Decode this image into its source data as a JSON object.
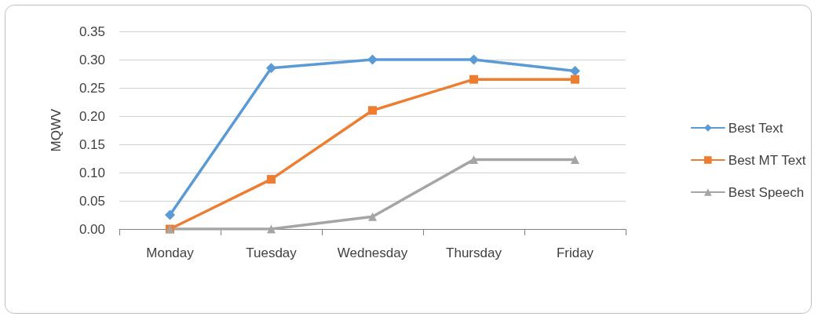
{
  "chart_data": {
    "type": "line",
    "ylabel": "MQWV",
    "categories": [
      "Monday",
      "Tuesday",
      "Wednesday",
      "Thursday",
      "Friday"
    ],
    "series": [
      {
        "name": "Best Text",
        "color": "#5b9bd5",
        "marker": "diamond",
        "values": [
          0.025,
          0.285,
          0.3,
          0.3,
          0.28
        ]
      },
      {
        "name": "Best MT Text",
        "color": "#ed7d31",
        "marker": "square",
        "values": [
          0.0,
          0.088,
          0.21,
          0.265,
          0.265
        ]
      },
      {
        "name": "Best Speech",
        "color": "#a5a5a5",
        "marker": "triangle",
        "values": [
          0.0,
          0.0,
          0.022,
          0.123,
          0.123
        ]
      }
    ],
    "ylim": [
      0,
      0.35
    ],
    "yticks": [
      {
        "value": 0,
        "label": "0.00"
      },
      {
        "value": 0.05,
        "label": "0.05"
      },
      {
        "value": 0.1,
        "label": "0.10"
      },
      {
        "value": 0.15,
        "label": "0.15"
      },
      {
        "value": 0.2,
        "label": "0.20"
      },
      {
        "value": 0.25,
        "label": "0.25"
      },
      {
        "value": 0.3,
        "label": "0.30"
      },
      {
        "value": 0.35,
        "label": "0.35"
      }
    ],
    "grid": "y",
    "legend": "right",
    "line_style": "solid"
  }
}
